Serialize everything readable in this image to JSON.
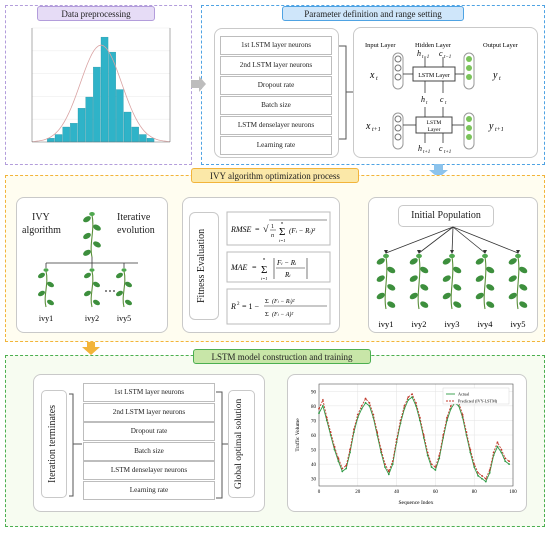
{
  "sections": {
    "preprocessing_title": "Data preprocessing",
    "param_title": "Parameter definition and range setting",
    "ivy_title": "IVY algorithm optimization process",
    "lstm_title": "LSTM model construction and training"
  },
  "params_top": [
    "1st LSTM layer neurons",
    "2nd LSTM layer neurons",
    "Dropout rate",
    "Batch size",
    "LSTM denselayer neurons",
    "Learning rate"
  ],
  "params_bottom": [
    "1st LSTM layer neurons",
    "2nd LSTM layer neurons",
    "Dropout rate",
    "Batch size",
    "LSTM denselayer neurons",
    "Learning rate"
  ],
  "lstm_net": {
    "input_label": "Input Layer",
    "hidden_label": "Hidden Layer",
    "output_label": "Output Layer",
    "cell_label": "LSTM Layer",
    "cell_label2": "LSTM Layer",
    "x_t": "x",
    "x_t_sub": "t",
    "x_t1": "x",
    "x_t1_sub": "t+1",
    "y_t": "y",
    "y_t_sub": "t",
    "y_t1": "y",
    "y_t1_sub": "t+1",
    "h_in": "h",
    "h_in_sub": "t−1",
    "c_in": "c",
    "c_in_sub": "t−1",
    "h_mid": "h",
    "h_mid_sub": "t",
    "c_mid": "c",
    "c_mid_sub": "t",
    "h_out": "h",
    "h_out_sub": "t+1",
    "c_out": "c",
    "c_out_sub": "t+1"
  },
  "ivy_left": {
    "label_a": "IVY",
    "label_b": "algorithm",
    "label_c": "Iterative",
    "label_d": "evolution",
    "leaves": [
      "ivy1",
      "ivy2",
      "ivy5"
    ]
  },
  "fitness": {
    "label": "Fitness Evaluation",
    "rmse": "RMSE = √( (1/n) Σ (F_i − R_i)² )",
    "mae": "MAE = Σ |(F_i − R_i)/R_i|",
    "r2": "R² = 1 − Σ(F_i − R_i)² / Σ(F_i − Ā)²"
  },
  "population": {
    "label": "Initial Population",
    "members": [
      "ivy1",
      "ivy2",
      "ivy3",
      "ivy4",
      "ivy5"
    ]
  },
  "bottom": {
    "iteration": "Iteration terminates",
    "global": "Global optimal solution"
  },
  "chart_data": {
    "type": "line",
    "xlabel": "Sequence Index",
    "ylabel": "Traffic Volume",
    "xlim": [
      0,
      100
    ],
    "ylim": [
      25,
      95
    ],
    "xticks": [
      0,
      20,
      40,
      60,
      80,
      100
    ],
    "yticks": [
      30,
      40,
      50,
      60,
      70,
      80,
      90
    ],
    "grid": true,
    "legend_position": "top-right",
    "series": [
      {
        "name": "Actual",
        "color": "#2e9a45",
        "x": [
          0,
          2,
          4,
          6,
          8,
          10,
          12,
          14,
          16,
          18,
          20,
          22,
          24,
          26,
          28,
          30,
          32,
          34,
          36,
          38,
          40,
          42,
          44,
          46,
          48,
          50,
          52,
          54,
          56,
          58,
          60,
          62,
          64,
          66,
          68,
          70,
          72,
          74,
          76,
          78,
          80,
          82,
          84,
          86,
          88,
          90,
          92,
          94,
          96,
          98
        ],
        "values": [
          75,
          80,
          70,
          60,
          50,
          42,
          35,
          37,
          48,
          62,
          72,
          78,
          82,
          80,
          72,
          60,
          48,
          38,
          33,
          40,
          55,
          68,
          78,
          84,
          86,
          80,
          70,
          58,
          46,
          38,
          36,
          44,
          58,
          70,
          78,
          82,
          80,
          72,
          60,
          48,
          38,
          32,
          30,
          28,
          34,
          46,
          52,
          48,
          42,
          40
        ]
      },
      {
        "name": "Predicted (IVY-LSTM)",
        "color": "#c0392b",
        "x": [
          0,
          2,
          4,
          6,
          8,
          10,
          12,
          14,
          16,
          18,
          20,
          22,
          24,
          26,
          28,
          30,
          32,
          34,
          36,
          38,
          40,
          42,
          44,
          46,
          48,
          50,
          52,
          54,
          56,
          58,
          60,
          62,
          64,
          66,
          68,
          70,
          72,
          74,
          76,
          78,
          80,
          82,
          84,
          86,
          88,
          90,
          92,
          94,
          96,
          98
        ],
        "values": [
          78,
          84,
          72,
          62,
          52,
          44,
          37,
          39,
          50,
          64,
          74,
          80,
          85,
          82,
          74,
          62,
          50,
          40,
          35,
          42,
          57,
          70,
          80,
          86,
          88,
          82,
          72,
          60,
          48,
          40,
          38,
          46,
          60,
          72,
          80,
          85,
          82,
          74,
          62,
          50,
          40,
          34,
          32,
          30,
          36,
          48,
          55,
          50,
          44,
          42
        ]
      }
    ]
  },
  "histogram_data": {
    "type": "bar",
    "values": [
      1,
      2,
      4,
      5,
      9,
      12,
      20,
      28,
      24,
      14,
      8,
      4,
      2,
      1
    ],
    "color": "#2fb3c8"
  },
  "colors": {
    "purple_panel": "#b39ddb",
    "blue_panel": "#4fa3e3",
    "orange_panel": "#f2b43a",
    "green_panel": "#4caf50",
    "ivy_green": "#3d8f3d",
    "arrow_gray": "#9e9e9e"
  }
}
